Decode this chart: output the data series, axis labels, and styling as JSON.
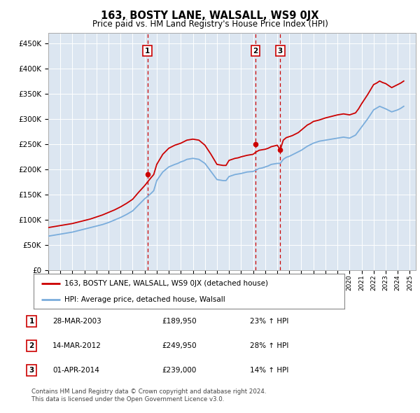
{
  "title": "163, BOSTY LANE, WALSALL, WS9 0JX",
  "subtitle": "Price paid vs. HM Land Registry's House Price Index (HPI)",
  "ylabel_ticks": [
    "£0",
    "£50K",
    "£100K",
    "£150K",
    "£200K",
    "£250K",
    "£300K",
    "£350K",
    "£400K",
    "£450K"
  ],
  "ytick_values": [
    0,
    50000,
    100000,
    150000,
    200000,
    250000,
    300000,
    350000,
    400000,
    450000
  ],
  "ylim": [
    0,
    470000
  ],
  "xlim_start": 1995.0,
  "xlim_end": 2025.5,
  "plot_bg_color": "#dce6f1",
  "legend_label_red": "163, BOSTY LANE, WALSALL, WS9 0JX (detached house)",
  "legend_label_blue": "HPI: Average price, detached house, Walsall",
  "red_color": "#cc0000",
  "blue_color": "#7aaddc",
  "sale_markers": [
    {
      "num": 1,
      "date_x": 2003.23,
      "price": 189950,
      "label": "28-MAR-2003",
      "price_str": "£189,950",
      "pct": "23% ↑ HPI"
    },
    {
      "num": 2,
      "date_x": 2012.2,
      "price": 249950,
      "label": "14-MAR-2012",
      "price_str": "£249,950",
      "pct": "28% ↑ HPI"
    },
    {
      "num": 3,
      "date_x": 2014.25,
      "price": 239000,
      "label": "01-APR-2014",
      "price_str": "£239,000",
      "pct": "14% ↑ HPI"
    }
  ],
  "footer_line1": "Contains HM Land Registry data © Crown copyright and database right 2024.",
  "footer_line2": "This data is licensed under the Open Government Licence v3.0.",
  "hpi_red_line": {
    "x": [
      1995.0,
      1995.25,
      1995.5,
      1995.75,
      1996.0,
      1996.25,
      1996.5,
      1996.75,
      1997.0,
      1997.25,
      1997.5,
      1997.75,
      1998.0,
      1998.25,
      1998.5,
      1998.75,
      1999.0,
      1999.25,
      1999.5,
      1999.75,
      2000.0,
      2000.25,
      2000.5,
      2000.75,
      2001.0,
      2001.25,
      2001.5,
      2001.75,
      2002.0,
      2002.25,
      2002.5,
      2002.75,
      2003.0,
      2003.23,
      2003.5,
      2003.75,
      2004.0,
      2004.25,
      2004.5,
      2004.75,
      2005.0,
      2005.25,
      2005.5,
      2005.75,
      2006.0,
      2006.25,
      2006.5,
      2006.75,
      2007.0,
      2007.25,
      2007.5,
      2007.75,
      2008.0,
      2008.25,
      2008.5,
      2008.75,
      2009.0,
      2009.25,
      2009.5,
      2009.75,
      2010.0,
      2010.25,
      2010.5,
      2010.75,
      2011.0,
      2011.25,
      2011.5,
      2011.75,
      2012.0,
      2012.2,
      2012.5,
      2012.75,
      2013.0,
      2013.25,
      2013.5,
      2013.75,
      2014.0,
      2014.25,
      2014.5,
      2014.75,
      2015.0,
      2015.25,
      2015.5,
      2015.75,
      2016.0,
      2016.25,
      2016.5,
      2016.75,
      2017.0,
      2017.25,
      2017.5,
      2017.75,
      2018.0,
      2018.25,
      2018.5,
      2018.75,
      2019.0,
      2019.25,
      2019.5,
      2019.75,
      2020.0,
      2020.25,
      2020.5,
      2020.75,
      2021.0,
      2021.25,
      2021.5,
      2021.75,
      2022.0,
      2022.25,
      2022.5,
      2022.75,
      2023.0,
      2023.25,
      2023.5,
      2023.75,
      2024.0,
      2024.25,
      2024.5
    ],
    "y": [
      85000,
      86000,
      87000,
      88000,
      89000,
      90000,
      91000,
      92000,
      93000,
      94500,
      96000,
      97500,
      99000,
      100500,
      102000,
      104000,
      106000,
      108000,
      110000,
      112500,
      115000,
      117500,
      120000,
      123000,
      126000,
      129500,
      133000,
      137000,
      141000,
      148000,
      155000,
      161500,
      168000,
      175000,
      183000,
      190000,
      210000,
      220000,
      230000,
      236000,
      242000,
      245000,
      248000,
      250000,
      252000,
      255000,
      258000,
      259000,
      260000,
      259000,
      258000,
      253000,
      248000,
      239000,
      230000,
      220000,
      210000,
      209000,
      208000,
      208000,
      218000,
      220000,
      222000,
      223000,
      225000,
      226500,
      228000,
      229000,
      230000,
      234000,
      238000,
      239000,
      240000,
      242000,
      245000,
      246500,
      248000,
      239000,
      258000,
      263000,
      265000,
      267000,
      270000,
      273000,
      278000,
      283000,
      288000,
      291000,
      295000,
      296500,
      298000,
      300000,
      302000,
      303500,
      305000,
      306500,
      308000,
      309000,
      310000,
      309000,
      308000,
      310000,
      312000,
      320000,
      330000,
      339000,
      348000,
      358000,
      368000,
      371000,
      375000,
      372000,
      370000,
      366000,
      362000,
      365000,
      368000,
      371000,
      375000
    ]
  },
  "hpi_blue_line": {
    "x": [
      1995.0,
      1995.25,
      1995.5,
      1995.75,
      1996.0,
      1996.25,
      1996.5,
      1996.75,
      1997.0,
      1997.25,
      1997.5,
      1997.75,
      1998.0,
      1998.25,
      1998.5,
      1998.75,
      1999.0,
      1999.25,
      1999.5,
      1999.75,
      2000.0,
      2000.25,
      2000.5,
      2000.75,
      2001.0,
      2001.25,
      2001.5,
      2001.75,
      2002.0,
      2002.25,
      2002.5,
      2002.75,
      2003.0,
      2003.25,
      2003.5,
      2003.75,
      2004.0,
      2004.25,
      2004.5,
      2004.75,
      2005.0,
      2005.25,
      2005.5,
      2005.75,
      2006.0,
      2006.25,
      2006.5,
      2006.75,
      2007.0,
      2007.25,
      2007.5,
      2007.75,
      2008.0,
      2008.25,
      2008.5,
      2008.75,
      2009.0,
      2009.25,
      2009.5,
      2009.75,
      2010.0,
      2010.25,
      2010.5,
      2010.75,
      2011.0,
      2011.25,
      2011.5,
      2011.75,
      2012.0,
      2012.25,
      2012.5,
      2012.75,
      2013.0,
      2013.25,
      2013.5,
      2013.75,
      2014.0,
      2014.25,
      2014.5,
      2014.75,
      2015.0,
      2015.25,
      2015.5,
      2015.75,
      2016.0,
      2016.25,
      2016.5,
      2016.75,
      2017.0,
      2017.25,
      2017.5,
      2017.75,
      2018.0,
      2018.25,
      2018.5,
      2018.75,
      2019.0,
      2019.25,
      2019.5,
      2019.75,
      2020.0,
      2020.25,
      2020.5,
      2020.75,
      2021.0,
      2021.25,
      2021.5,
      2021.75,
      2022.0,
      2022.25,
      2022.5,
      2022.75,
      2023.0,
      2023.25,
      2023.5,
      2023.75,
      2024.0,
      2024.25,
      2024.5
    ],
    "y": [
      68000,
      69000,
      70000,
      71000,
      72000,
      73000,
      74000,
      75000,
      76000,
      77500,
      79000,
      80500,
      82000,
      83500,
      85000,
      86500,
      88000,
      89500,
      91000,
      93000,
      95000,
      97500,
      100000,
      102500,
      105000,
      108000,
      111000,
      114500,
      118000,
      124000,
      130000,
      136000,
      142000,
      147000,
      152000,
      158000,
      178000,
      186500,
      195000,
      200000,
      205000,
      207500,
      210000,
      212000,
      215000,
      217000,
      220000,
      221000,
      222000,
      221000,
      220000,
      216000,
      212000,
      204000,
      196000,
      188000,
      180000,
      179000,
      178000,
      178000,
      186000,
      188000,
      190000,
      191000,
      192000,
      193500,
      195000,
      195500,
      196000,
      199000,
      202000,
      203000,
      205000,
      207000,
      210000,
      211000,
      212000,
      212000,
      220000,
      224000,
      226000,
      229000,
      232000,
      235000,
      238000,
      242000,
      246000,
      249000,
      252000,
      254000,
      256000,
      257000,
      258000,
      259000,
      260000,
      261000,
      262000,
      263000,
      264000,
      263000,
      262000,
      265000,
      268000,
      276000,
      284000,
      292000,
      300000,
      309000,
      318000,
      321500,
      325000,
      322500,
      320000,
      317000,
      314000,
      316000,
      318000,
      321000,
      325000
    ]
  }
}
